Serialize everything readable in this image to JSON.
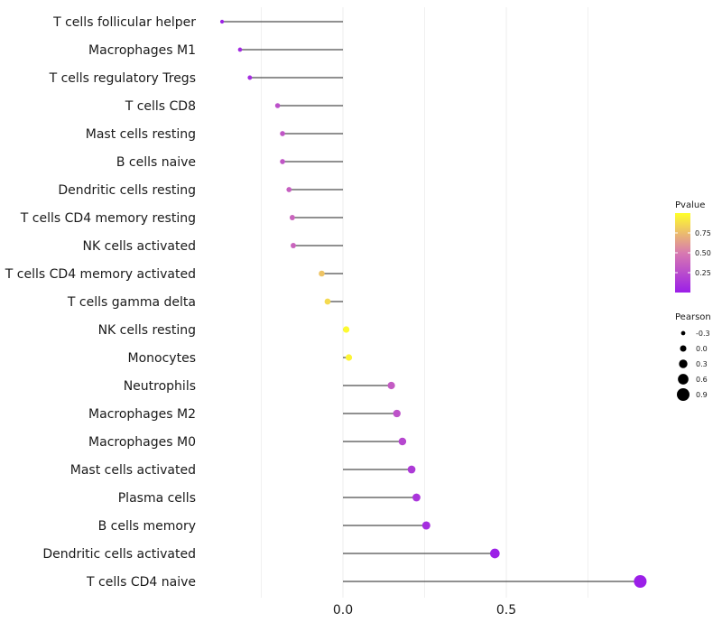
{
  "chart_data": {
    "type": "lollipop",
    "title": "",
    "xlabel": "",
    "ylabel": "",
    "xlim": [
      -0.5,
      0.92
    ],
    "x_ticks": [
      0.0,
      0.5
    ],
    "x_tick_labels": [
      "0.0",
      "0.5"
    ],
    "grid": true,
    "categories": [
      "T cells follicular helper",
      "Macrophages M1",
      "T cells regulatory  Tregs",
      "T cells CD8",
      "Mast cells resting",
      "B cells naive",
      "Dendritic cells resting",
      "T cells CD4 memory resting",
      "NK cells activated",
      "T cells CD4 memory activated",
      "T cells gamma delta",
      "NK cells resting",
      "Monocytes",
      "Neutrophils",
      "Macrophages M2",
      "Macrophages M0",
      "Mast cells activated",
      "Plasma cells",
      "B cells memory",
      "Dendritic cells activated",
      "T cells CD4 naive"
    ],
    "pearson": [
      -0.37,
      -0.315,
      -0.285,
      -0.2,
      -0.185,
      -0.185,
      -0.165,
      -0.155,
      -0.152,
      -0.065,
      -0.047,
      0.01,
      0.018,
      0.148,
      0.165,
      0.182,
      0.21,
      0.225,
      0.255,
      0.465,
      0.91
    ],
    "pvalue": [
      0.02,
      0.06,
      0.07,
      0.27,
      0.3,
      0.3,
      0.35,
      0.38,
      0.38,
      0.78,
      0.86,
      0.98,
      0.96,
      0.33,
      0.28,
      0.22,
      0.15,
      0.12,
      0.08,
      0.01,
      0.0
    ],
    "color_scale": {
      "title": "Pvalue",
      "low": "#9b1fe8",
      "mid": "#d87ab0",
      "high": "#ffff2a",
      "ticks": [
        0.25,
        0.5,
        0.75
      ],
      "tick_labels": [
        "0.25",
        "0.50",
        "0.75"
      ]
    },
    "size_legend": {
      "title": "Pearson",
      "values": [
        -0.3,
        0.0,
        0.3,
        0.6,
        0.9
      ],
      "labels": [
        "-0.3",
        "0.0",
        "0.3",
        "0.6",
        "0.9"
      ]
    }
  }
}
